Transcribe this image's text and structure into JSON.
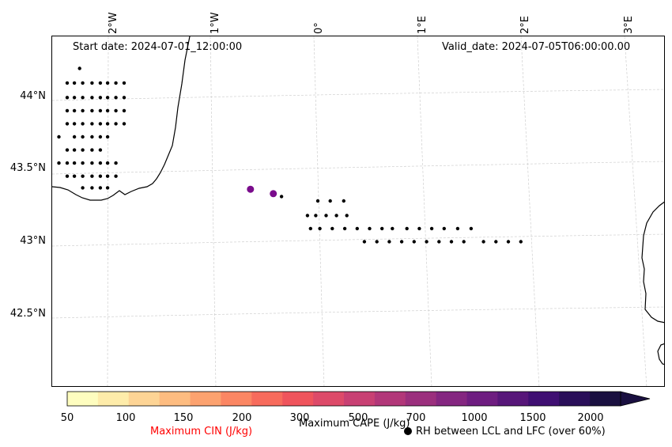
{
  "map": {
    "start_date_text": "Start date: 2024-07-01_12:00:00",
    "valid_date_text": "Valid_date: 2024-07-05T06:00:00.00",
    "lon_labels": [
      "2°W",
      "1°W",
      "0°",
      "1°E",
      "2°E",
      "3°E"
    ],
    "lat_labels": [
      "44°N",
      "43.5°N",
      "43°N",
      "42.5°N"
    ],
    "rh_points": [
      [
        -2.3,
        44.22
      ],
      [
        -2.42,
        44.12
      ],
      [
        -2.35,
        44.12
      ],
      [
        -2.27,
        44.12
      ],
      [
        -2.18,
        44.12
      ],
      [
        -2.1,
        44.12
      ],
      [
        -2.03,
        44.12
      ],
      [
        -1.95,
        44.12
      ],
      [
        -1.87,
        44.12
      ],
      [
        -2.42,
        44.02
      ],
      [
        -2.35,
        44.02
      ],
      [
        -2.27,
        44.02
      ],
      [
        -2.18,
        44.02
      ],
      [
        -2.1,
        44.02
      ],
      [
        -2.03,
        44.02
      ],
      [
        -1.95,
        44.02
      ],
      [
        -1.87,
        44.02
      ],
      [
        -2.42,
        43.93
      ],
      [
        -2.35,
        43.93
      ],
      [
        -2.27,
        43.93
      ],
      [
        -2.18,
        43.93
      ],
      [
        -2.1,
        43.93
      ],
      [
        -2.03,
        43.93
      ],
      [
        -1.95,
        43.93
      ],
      [
        -1.87,
        43.93
      ],
      [
        -2.42,
        43.84
      ],
      [
        -2.35,
        43.84
      ],
      [
        -2.27,
        43.84
      ],
      [
        -2.18,
        43.84
      ],
      [
        -2.1,
        43.84
      ],
      [
        -2.03,
        43.84
      ],
      [
        -1.95,
        43.84
      ],
      [
        -1.87,
        43.84
      ],
      [
        -2.5,
        43.75
      ],
      [
        -2.35,
        43.75
      ],
      [
        -2.27,
        43.75
      ],
      [
        -2.18,
        43.75
      ],
      [
        -2.1,
        43.75
      ],
      [
        -2.03,
        43.75
      ],
      [
        -2.42,
        43.66
      ],
      [
        -2.35,
        43.66
      ],
      [
        -2.27,
        43.66
      ],
      [
        -2.18,
        43.66
      ],
      [
        -2.1,
        43.66
      ],
      [
        -2.5,
        43.57
      ],
      [
        -2.42,
        43.57
      ],
      [
        -2.35,
        43.57
      ],
      [
        -2.27,
        43.57
      ],
      [
        -2.18,
        43.57
      ],
      [
        -2.1,
        43.57
      ],
      [
        -2.03,
        43.57
      ],
      [
        -1.95,
        43.57
      ],
      [
        -2.42,
        43.48
      ],
      [
        -2.35,
        43.48
      ],
      [
        -2.27,
        43.48
      ],
      [
        -2.18,
        43.48
      ],
      [
        -2.1,
        43.48
      ],
      [
        -2.03,
        43.48
      ],
      [
        -1.95,
        43.48
      ],
      [
        -2.27,
        43.4
      ],
      [
        -2.18,
        43.4
      ],
      [
        -2.1,
        43.4
      ],
      [
        -2.03,
        43.4
      ],
      [
        -0.35,
        43.34
      ],
      [
        0.0,
        43.31
      ],
      [
        0.12,
        43.31
      ],
      [
        0.25,
        43.31
      ],
      [
        -0.1,
        43.21
      ],
      [
        -0.02,
        43.21
      ],
      [
        0.08,
        43.21
      ],
      [
        0.18,
        43.21
      ],
      [
        0.28,
        43.21
      ],
      [
        -0.07,
        43.12
      ],
      [
        0.02,
        43.12
      ],
      [
        0.14,
        43.12
      ],
      [
        0.26,
        43.12
      ],
      [
        0.38,
        43.12
      ],
      [
        0.5,
        43.12
      ],
      [
        0.62,
        43.12
      ],
      [
        0.72,
        43.12
      ],
      [
        0.86,
        43.12
      ],
      [
        0.98,
        43.12
      ],
      [
        1.1,
        43.12
      ],
      [
        1.22,
        43.12
      ],
      [
        1.35,
        43.12
      ],
      [
        1.48,
        43.12
      ],
      [
        0.45,
        43.03
      ],
      [
        0.57,
        43.03
      ],
      [
        0.69,
        43.03
      ],
      [
        0.81,
        43.03
      ],
      [
        0.93,
        43.03
      ],
      [
        1.05,
        43.03
      ],
      [
        1.17,
        43.03
      ],
      [
        1.29,
        43.03
      ],
      [
        1.41,
        43.03
      ],
      [
        1.6,
        43.03
      ],
      [
        1.72,
        43.03
      ],
      [
        1.84,
        43.03
      ],
      [
        1.96,
        43.03
      ]
    ],
    "cape_points": [
      {
        "lon": -0.65,
        "lat": 43.39,
        "color": "#7a0c8c"
      },
      {
        "lon": -0.43,
        "lat": 43.36,
        "color": "#7a0c8c"
      }
    ]
  },
  "colorbar": {
    "tick_labels": [
      "50",
      "100",
      "150",
      "200",
      "300",
      "500",
      "700",
      "1000",
      "1500",
      "2000"
    ],
    "colors": [
      "#fefdbf",
      "#feecaa",
      "#fdd495",
      "#fdbc80",
      "#fca26f",
      "#fb8663",
      "#f76b5c",
      "#ef545c",
      "#dd4a69",
      "#c84073",
      "#b23779",
      "#9b2f7d",
      "#842680",
      "#6e1d80",
      "#571679",
      "#3f0f72",
      "#2a0f59",
      "#1a1040"
    ],
    "extend_color": "#1a1040",
    "cin_label": "Maximum CIN (J/kg)",
    "cin_color": "#ff0000",
    "cape_label": "Maximum CAPE (J/kg)",
    "rh_label": "RH between LCL and LFC (over 60%)"
  }
}
